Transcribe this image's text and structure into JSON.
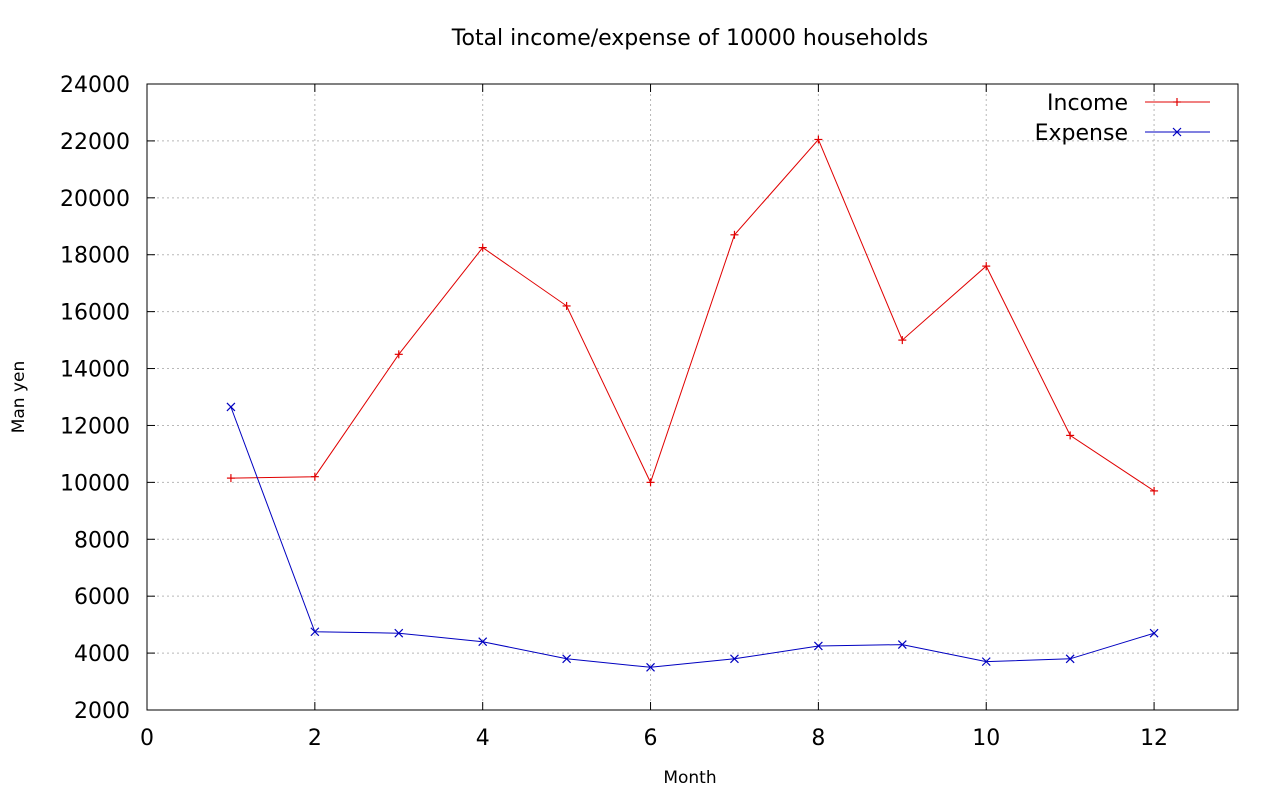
{
  "chart_data": {
    "type": "line",
    "title": "Total income/expense of 10000 households",
    "xlabel": "Month",
    "ylabel": "Man yen",
    "xlim": [
      0,
      13
    ],
    "ylim": [
      2000,
      24000
    ],
    "xticks": [
      0,
      2,
      4,
      6,
      8,
      10,
      12
    ],
    "yticks": [
      2000,
      4000,
      6000,
      8000,
      10000,
      12000,
      14000,
      16000,
      18000,
      20000,
      22000,
      24000
    ],
    "grid": true,
    "legend_position": "top-right",
    "x": [
      1,
      2,
      3,
      4,
      5,
      6,
      7,
      8,
      9,
      10,
      11,
      12
    ],
    "series": [
      {
        "name": "Income",
        "color": "#e00000",
        "marker": "plus",
        "values": [
          10150,
          10200,
          14500,
          18250,
          16200,
          10000,
          18700,
          22050,
          15000,
          17600,
          11650,
          9700
        ]
      },
      {
        "name": "Expense",
        "color": "#0000c0",
        "marker": "cross",
        "values": [
          12650,
          4750,
          4700,
          4400,
          3800,
          3500,
          3800,
          4250,
          4300,
          3700,
          3800,
          4700
        ]
      }
    ]
  }
}
